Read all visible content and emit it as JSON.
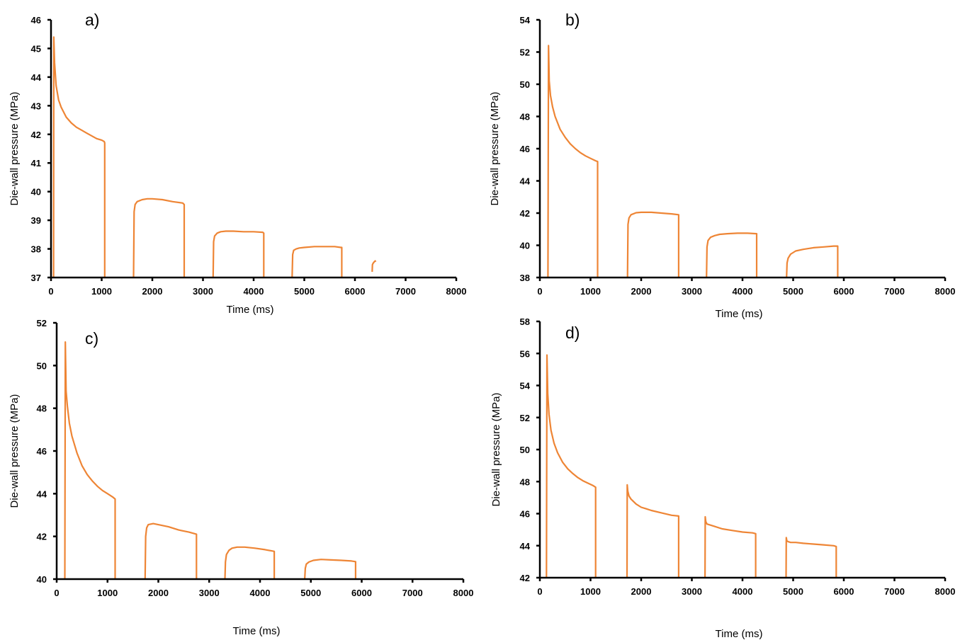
{
  "series_color": "#EE8535",
  "chart_data": [
    {
      "type": "line",
      "panel_label": "a)",
      "xlabel": "Time (ms)",
      "ylabel": "Die-wall pressure (MPa)",
      "xlim": [
        0,
        8000
      ],
      "ylim": [
        37,
        46
      ],
      "xticks": [
        0,
        1000,
        2000,
        3000,
        4000,
        5000,
        6000,
        7000,
        8000
      ],
      "yticks": [
        37,
        38,
        39,
        40,
        41,
        42,
        43,
        44,
        45,
        46
      ],
      "segments": [
        {
          "x": [
            50,
            55,
            70,
            100,
            150,
            200,
            300,
            400,
            500,
            600,
            700,
            800,
            900,
            1000,
            1050,
            1060,
            1060
          ],
          "y": [
            37,
            45.4,
            44.5,
            43.7,
            43.2,
            42.95,
            42.6,
            42.4,
            42.25,
            42.15,
            42.05,
            41.95,
            41.85,
            41.8,
            41.75,
            41.7,
            37
          ]
        },
        {
          "x": [
            1630,
            1640,
            1660,
            1700,
            1800,
            1900,
            2000,
            2200,
            2400,
            2600,
            2630,
            2630
          ],
          "y": [
            37,
            39.3,
            39.55,
            39.65,
            39.72,
            39.75,
            39.75,
            39.72,
            39.65,
            39.6,
            39.55,
            37
          ]
        },
        {
          "x": [
            3200,
            3210,
            3230,
            3280,
            3350,
            3450,
            3600,
            3800,
            4000,
            4180,
            4200,
            4200
          ],
          "y": [
            37,
            38.25,
            38.45,
            38.55,
            38.6,
            38.62,
            38.62,
            38.6,
            38.6,
            38.58,
            38.55,
            37
          ]
        },
        {
          "x": [
            4760,
            4770,
            4790,
            4840,
            4900,
            5000,
            5200,
            5400,
            5600,
            5720,
            5740,
            5740
          ],
          "y": [
            37,
            37.8,
            37.95,
            38.0,
            38.03,
            38.05,
            38.08,
            38.08,
            38.08,
            38.05,
            38.05,
            37
          ]
        },
        {
          "x": [
            6340,
            6345,
            6360,
            6380,
            6400,
            6410
          ],
          "y": [
            37.2,
            37.45,
            37.5,
            37.55,
            37.58,
            37.55
          ]
        }
      ]
    },
    {
      "type": "line",
      "panel_label": "b)",
      "xlabel": "Time (ms)",
      "ylabel": "Die-wall pressure (MPa)",
      "xlim": [
        0,
        8000
      ],
      "ylim": [
        38,
        54
      ],
      "xticks": [
        0,
        1000,
        2000,
        3000,
        4000,
        5000,
        6000,
        7000,
        8000
      ],
      "yticks": [
        38,
        40,
        42,
        44,
        46,
        48,
        50,
        52,
        54
      ],
      "segments": [
        {
          "x": [
            160,
            170,
            185,
            210,
            250,
            300,
            400,
            500,
            600,
            700,
            800,
            900,
            1000,
            1100,
            1140,
            1140
          ],
          "y": [
            38,
            52.4,
            50.2,
            49.3,
            48.6,
            48.0,
            47.2,
            46.7,
            46.3,
            46.0,
            45.75,
            45.55,
            45.4,
            45.25,
            45.2,
            38
          ]
        },
        {
          "x": [
            1730,
            1740,
            1760,
            1800,
            1900,
            2000,
            2200,
            2400,
            2600,
            2740,
            2740
          ],
          "y": [
            38,
            41.3,
            41.7,
            41.9,
            42.02,
            42.05,
            42.05,
            42.0,
            41.95,
            41.9,
            38
          ]
        },
        {
          "x": [
            3290,
            3300,
            3320,
            3370,
            3450,
            3550,
            3700,
            3900,
            4100,
            4280,
            4280
          ],
          "y": [
            38,
            39.9,
            40.3,
            40.5,
            40.6,
            40.68,
            40.72,
            40.75,
            40.75,
            40.72,
            38
          ]
        },
        {
          "x": [
            4870,
            4880,
            4900,
            4950,
            5050,
            5200,
            5400,
            5600,
            5800,
            5880,
            5880
          ],
          "y": [
            38,
            38.9,
            39.2,
            39.45,
            39.65,
            39.75,
            39.85,
            39.9,
            39.95,
            39.95,
            38
          ]
        }
      ]
    },
    {
      "type": "line",
      "panel_label": "c)",
      "xlabel": "Time (ms)",
      "ylabel": "Die-wall pressure (MPa)",
      "xlim": [
        0,
        8000
      ],
      "ylim": [
        40,
        52
      ],
      "xticks": [
        0,
        1000,
        2000,
        3000,
        4000,
        5000,
        6000,
        7000,
        8000
      ],
      "yticks": [
        40,
        42,
        44,
        46,
        48,
        50,
        52
      ],
      "segments": [
        {
          "x": [
            160,
            170,
            185,
            210,
            250,
            300,
            400,
            500,
            600,
            700,
            800,
            900,
            1000,
            1100,
            1150,
            1150
          ],
          "y": [
            40,
            51.1,
            48.8,
            48.1,
            47.3,
            46.7,
            45.9,
            45.3,
            44.9,
            44.6,
            44.35,
            44.15,
            44.0,
            43.85,
            43.75,
            40
          ]
        },
        {
          "x": [
            1740,
            1750,
            1770,
            1800,
            1900,
            2000,
            2200,
            2400,
            2600,
            2750,
            2750
          ],
          "y": [
            40,
            42.0,
            42.4,
            42.55,
            42.6,
            42.55,
            42.45,
            42.3,
            42.2,
            42.1,
            40
          ]
        },
        {
          "x": [
            3310,
            3320,
            3340,
            3390,
            3450,
            3550,
            3700,
            3900,
            4100,
            4280,
            4280
          ],
          "y": [
            40,
            40.8,
            41.15,
            41.35,
            41.45,
            41.5,
            41.5,
            41.45,
            41.38,
            41.3,
            40
          ]
        },
        {
          "x": [
            4880,
            4890,
            4910,
            4960,
            5050,
            5200,
            5400,
            5600,
            5800,
            5880,
            5880
          ],
          "y": [
            40,
            40.5,
            40.7,
            40.8,
            40.88,
            40.92,
            40.9,
            40.88,
            40.85,
            40.82,
            40
          ]
        }
      ]
    },
    {
      "type": "line",
      "panel_label": "d)",
      "xlabel": "Time (ms)",
      "ylabel": "Die-wall pressure (MPa)",
      "xlim": [
        0,
        8000
      ],
      "ylim": [
        42,
        58
      ],
      "xticks": [
        0,
        1000,
        2000,
        3000,
        4000,
        5000,
        6000,
        7000,
        8000
      ],
      "yticks": [
        42,
        44,
        46,
        48,
        50,
        52,
        54,
        56,
        58
      ],
      "segments": [
        {
          "x": [
            130,
            140,
            155,
            180,
            220,
            280,
            350,
            450,
            550,
            650,
            750,
            850,
            950,
            1050,
            1100,
            1100
          ],
          "y": [
            42,
            55.9,
            53.5,
            52.2,
            51.2,
            50.4,
            49.8,
            49.2,
            48.8,
            48.5,
            48.25,
            48.05,
            47.9,
            47.75,
            47.65,
            42
          ]
        },
        {
          "x": [
            1720,
            1725,
            1735,
            1760,
            1800,
            1900,
            2000,
            2100,
            2200,
            2400,
            2600,
            2740,
            2740
          ],
          "y": [
            42,
            47.8,
            47.4,
            47.1,
            46.9,
            46.6,
            46.4,
            46.3,
            46.2,
            46.05,
            45.9,
            45.85,
            42
          ]
        },
        {
          "x": [
            3260,
            3265,
            3275,
            3300,
            3350,
            3450,
            3600,
            3800,
            4000,
            4200,
            4260,
            4260
          ],
          "y": [
            42,
            45.8,
            45.5,
            45.35,
            45.3,
            45.2,
            45.05,
            44.95,
            44.85,
            44.8,
            44.75,
            42
          ]
        },
        {
          "x": [
            4860,
            4865,
            4875,
            4900,
            4950,
            5050,
            5200,
            5400,
            5600,
            5800,
            5850,
            5850
          ],
          "y": [
            42,
            44.5,
            44.3,
            44.25,
            44.2,
            44.2,
            44.15,
            44.1,
            44.05,
            44.0,
            43.95,
            42
          ]
        }
      ]
    }
  ]
}
